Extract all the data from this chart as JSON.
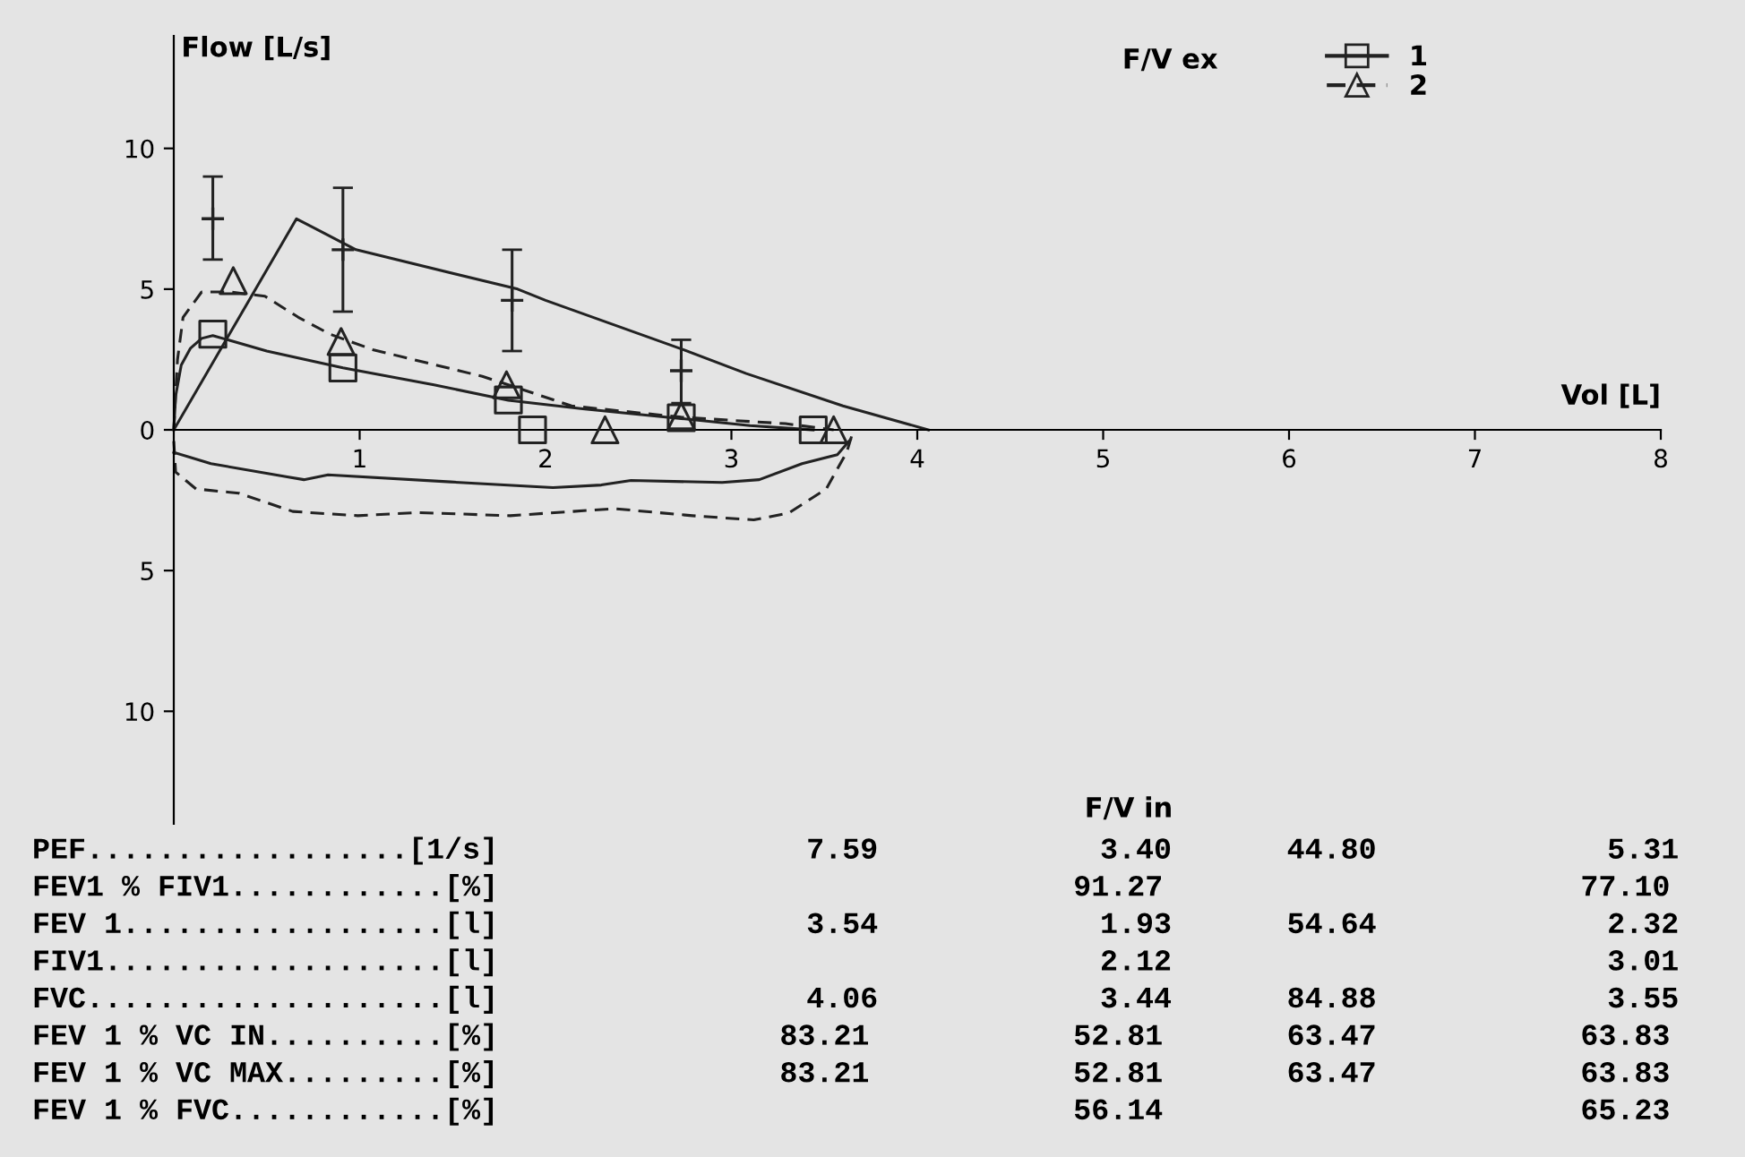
{
  "chart_data": {
    "type": "line",
    "title": "F/V ex",
    "xlabel": "Vol [L]",
    "ylabel": "Flow [L/s]",
    "xlim": [
      0,
      8
    ],
    "ylim": [
      -14,
      14
    ],
    "xticks": [
      1,
      2,
      3,
      4,
      5,
      6,
      7,
      8
    ],
    "yticks": [
      {
        "value": -10,
        "label": "10"
      },
      {
        "value": -5,
        "label": "5"
      },
      0,
      5,
      10
    ],
    "grid": false,
    "legend": "top right",
    "series": [
      {
        "color": "#222222",
        "line_style": "solid",
        "marker": "none",
        "x": [
          0,
          0.66,
          0.98,
          1.85,
          2.0,
          2.72,
          3.08,
          3.6,
          4.06
        ],
        "values": [
          0,
          7.5,
          6.4,
          5.0,
          4.6,
          2.9,
          2.0,
          0.85,
          0
        ]
      },
      {
        "type": "scatter",
        "color": "#222222",
        "marker": "cross",
        "x": [
          0.21,
          0.91,
          1.82,
          2.73
        ],
        "values": [
          7.5,
          6.4,
          4.6,
          2.1
        ],
        "errors": [
          [
            6.05,
            9.0
          ],
          [
            4.2,
            8.6
          ],
          [
            2.8,
            6.4
          ],
          [
            0.95,
            3.2
          ]
        ]
      },
      {
        "color": "#222222",
        "line_style": "solid",
        "marker": "none",
        "x": [
          0,
          0.01,
          0.04,
          0.09,
          0.15,
          0.21,
          0.5,
          0.91,
          1.4,
          1.8,
          2.2,
          2.73,
          3.1,
          3.44
        ],
        "values": [
          0,
          1.2,
          2.3,
          2.9,
          3.25,
          3.35,
          2.8,
          2.2,
          1.6,
          1.05,
          0.75,
          0.4,
          0.15,
          0
        ]
      },
      {
        "color": "#222222",
        "line_style": "solid",
        "marker": "none",
        "x": [
          0.0,
          0.2,
          0.61,
          0.7,
          0.83,
          1.49,
          2.04,
          2.3,
          2.46,
          2.95,
          3.15,
          3.38,
          3.57,
          3.64
        ],
        "values": [
          -0.8,
          -1.2,
          -1.67,
          -1.77,
          -1.6,
          -1.85,
          -2.05,
          -1.96,
          -1.8,
          -1.87,
          -1.77,
          -1.2,
          -0.88,
          -0.35
        ]
      },
      {
        "color": "#222222",
        "line_style": "dashed",
        "marker": "none",
        "x": [
          0,
          0.02,
          0.05,
          0.15,
          0.3,
          0.49,
          0.67,
          0.84,
          1.07,
          1.66,
          1.8,
          2.14,
          2.73,
          3.29,
          3.55
        ],
        "values": [
          0,
          2.5,
          4.0,
          4.9,
          4.9,
          4.75,
          4.0,
          3.4,
          2.85,
          1.9,
          1.6,
          0.85,
          0.45,
          0.22,
          0
        ]
      },
      {
        "color": "#222222",
        "line_style": "dashed",
        "marker": "none",
        "x": [
          0.0,
          0.01,
          0.12,
          0.35,
          0.64,
          0.99,
          1.32,
          1.81,
          2.37,
          2.79,
          3.12,
          3.31,
          3.51,
          3.62,
          3.65
        ],
        "values": [
          -0.4,
          -1.5,
          -2.1,
          -2.25,
          -2.9,
          -3.05,
          -2.94,
          -3.05,
          -2.8,
          -3.05,
          -3.2,
          -2.95,
          -2.1,
          -0.8,
          -0.15
        ]
      },
      {
        "type": "scatter",
        "name": "1",
        "color": "#222222",
        "marker": "square",
        "line_style": "solid",
        "x": [
          0.21,
          0.91,
          1.8,
          1.93,
          2.73,
          3.44
        ],
        "values": [
          3.4,
          2.2,
          1.06,
          0,
          0.43,
          0
        ]
      },
      {
        "type": "scatter",
        "name": "2",
        "color": "#222222",
        "marker": "triangle",
        "line_style": "dashed",
        "x": [
          0.32,
          0.9,
          1.79,
          2.32,
          2.73,
          3.55
        ],
        "values": [
          5.3,
          3.14,
          1.6,
          0,
          0.5,
          0
        ]
      }
    ],
    "annotations": [
      "F/V in",
      "PEF..................[1/s]   7.59       3.40   44.80       5.31",
      "FEV1 % FIV1............[%]             91.27              77.10",
      "FEV 1..................[l]   3.54       1.93   54.64       2.32",
      "FIV1...................[l]              2.12               3.01",
      "FVC....................[l]   4.06       3.44   84.88       3.55",
      "FEV 1 % VC IN..........[%]  83.21      52.81   63.47      63.83",
      "FEV 1 % VC MAX.........[%]  83.21      52.81   63.47      63.83",
      "FEV 1 % FVC............[%]             56.14              65.23"
    ]
  }
}
